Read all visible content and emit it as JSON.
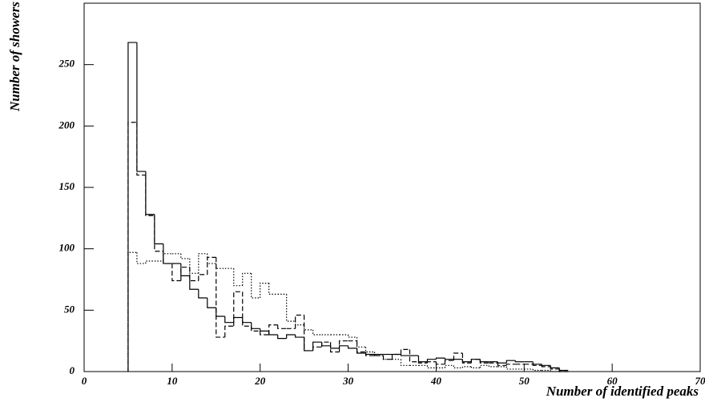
{
  "chart_data": {
    "type": "histogram",
    "x_label": "Number of identified peaks",
    "y_label": "Number of showers",
    "bins": [
      5,
      6,
      7,
      8,
      9,
      10,
      11,
      12,
      13,
      14,
      15,
      16,
      17,
      18,
      19,
      20,
      21,
      22,
      23,
      24,
      25,
      26,
      27,
      28,
      29,
      30,
      31,
      32,
      33,
      34,
      35,
      36,
      37,
      38,
      39,
      40,
      41,
      42,
      43,
      44,
      45,
      46,
      47,
      48,
      49,
      50,
      51,
      52,
      53,
      54,
      55
    ],
    "series": [
      {
        "color": "#000000",
        "line_style": "solid",
        "values": [
          268,
          163,
          128,
          104,
          88,
          88,
          78,
          67,
          60,
          52,
          45,
          40,
          44,
          40,
          35,
          33,
          30,
          27,
          30,
          28,
          17,
          24,
          21,
          19,
          21,
          19,
          15,
          14,
          14,
          14,
          14,
          13,
          13,
          8,
          10,
          11,
          10,
          10,
          8,
          10,
          8,
          8,
          7,
          9,
          8,
          8,
          6,
          5,
          3,
          1
        ]
      },
      {
        "color": "#000000",
        "line_style": "dashed",
        "values": [
          203,
          160,
          127,
          98,
          88,
          74,
          85,
          74,
          79,
          93,
          28,
          37,
          65,
          37,
          33,
          30,
          38,
          35,
          35,
          46,
          17,
          20,
          24,
          16,
          25,
          25,
          16,
          13,
          13,
          10,
          14,
          18,
          8,
          7,
          8,
          6,
          9,
          15,
          7,
          10,
          7,
          7,
          5,
          6,
          6,
          6,
          5,
          4,
          2,
          0
        ]
      },
      {
        "color": "#000000",
        "line_style": "dotted",
        "values": [
          97,
          88,
          90,
          90,
          96,
          96,
          92,
          80,
          96,
          88,
          84,
          84,
          70,
          80,
          60,
          72,
          63,
          63,
          41,
          38,
          34,
          30,
          30,
          30,
          30,
          28,
          20,
          16,
          13,
          10,
          10,
          5,
          5,
          5,
          3,
          3,
          5,
          3,
          4,
          3,
          5,
          4,
          4,
          2,
          2,
          2,
          1,
          1,
          0,
          0
        ]
      }
    ],
    "xlim": [
      0,
      70
    ],
    "xticks": [
      0,
      10,
      20,
      30,
      40,
      50,
      60,
      70
    ],
    "ylim": [
      0,
      300
    ],
    "yticks": [
      0,
      50,
      100,
      150,
      200,
      250
    ]
  }
}
